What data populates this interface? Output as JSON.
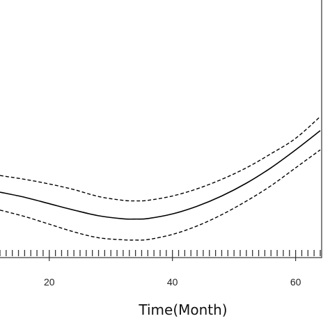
{
  "chart_data": {
    "type": "line",
    "xlabel": "Time(Month)",
    "ylabel": "",
    "title": "",
    "x_ticks": [
      20,
      40,
      60
    ],
    "xlim": [
      12,
      64
    ],
    "ylim": [
      0,
      1
    ],
    "rug": true,
    "series": [
      {
        "style": "solid",
        "x": [
          12,
          16,
          20,
          24,
          28,
          32,
          34,
          36,
          40,
          44,
          48,
          52,
          56,
          60,
          64
        ],
        "y": [
          0.25,
          0.23,
          0.205,
          0.18,
          0.158,
          0.146,
          0.145,
          0.147,
          0.165,
          0.195,
          0.235,
          0.285,
          0.345,
          0.415,
          0.49
        ]
      },
      {
        "style": "dashed",
        "x": [
          12,
          16,
          20,
          24,
          28,
          32,
          34,
          36,
          40,
          44,
          48,
          52,
          56,
          60,
          64
        ],
        "y": [
          0.315,
          0.3,
          0.282,
          0.26,
          0.233,
          0.218,
          0.216,
          0.218,
          0.235,
          0.263,
          0.3,
          0.345,
          0.4,
          0.46,
          0.545
        ]
      },
      {
        "style": "dashed",
        "x": [
          12,
          16,
          20,
          24,
          28,
          32,
          34,
          36,
          40,
          44,
          48,
          52,
          56,
          60,
          64
        ],
        "y": [
          0.18,
          0.155,
          0.125,
          0.095,
          0.072,
          0.064,
          0.063,
          0.065,
          0.085,
          0.118,
          0.162,
          0.215,
          0.275,
          0.345,
          0.415
        ]
      }
    ],
    "colors": {
      "line": "#000000",
      "axis": "#333333"
    }
  }
}
